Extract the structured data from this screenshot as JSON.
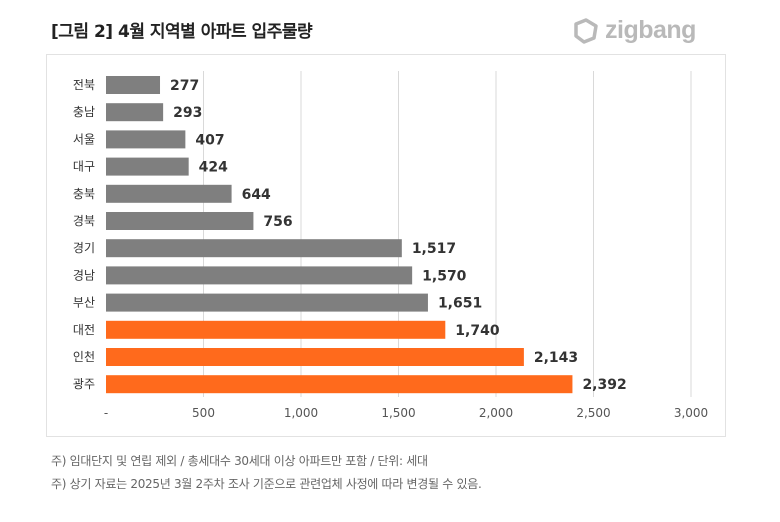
{
  "title": "[그림 2] 4월 지역별 아파트 입주물량",
  "logo": "zigbang",
  "chart_data": {
    "type": "bar",
    "orientation": "horizontal",
    "categories": [
      "전북",
      "충남",
      "서울",
      "대구",
      "충북",
      "경북",
      "경기",
      "경남",
      "부산",
      "대전",
      "인천",
      "광주"
    ],
    "values": [
      277,
      293,
      407,
      424,
      644,
      756,
      1517,
      1570,
      1651,
      1740,
      2143,
      2392
    ],
    "value_labels": [
      "277",
      "293",
      "407",
      "424",
      "644",
      "756",
      "1,517",
      "1,570",
      "1,651",
      "1,740",
      "2,143",
      "2,392"
    ],
    "highlighted": [
      "대전",
      "인천",
      "광주"
    ],
    "colors": {
      "default": "#7f7f7f",
      "highlight": "#ff6a1c"
    },
    "xlim": [
      0,
      3000
    ],
    "xticks": [
      0,
      500,
      1000,
      1500,
      2000,
      2500,
      3000
    ],
    "xtick_labels": [
      "-",
      "500",
      "1,000",
      "1,500",
      "2,000",
      "2,500",
      "3,000"
    ],
    "grid": true
  },
  "notes": [
    "주) 임대단지 및 연립 제외 / 총세대수 30세대 이상 아파트만 포함 / 단위: 세대",
    "주) 상기 자료는 2025년 3월 2주차 조사 기준으로 관련업체 사정에 따라 변경될 수 있음."
  ]
}
